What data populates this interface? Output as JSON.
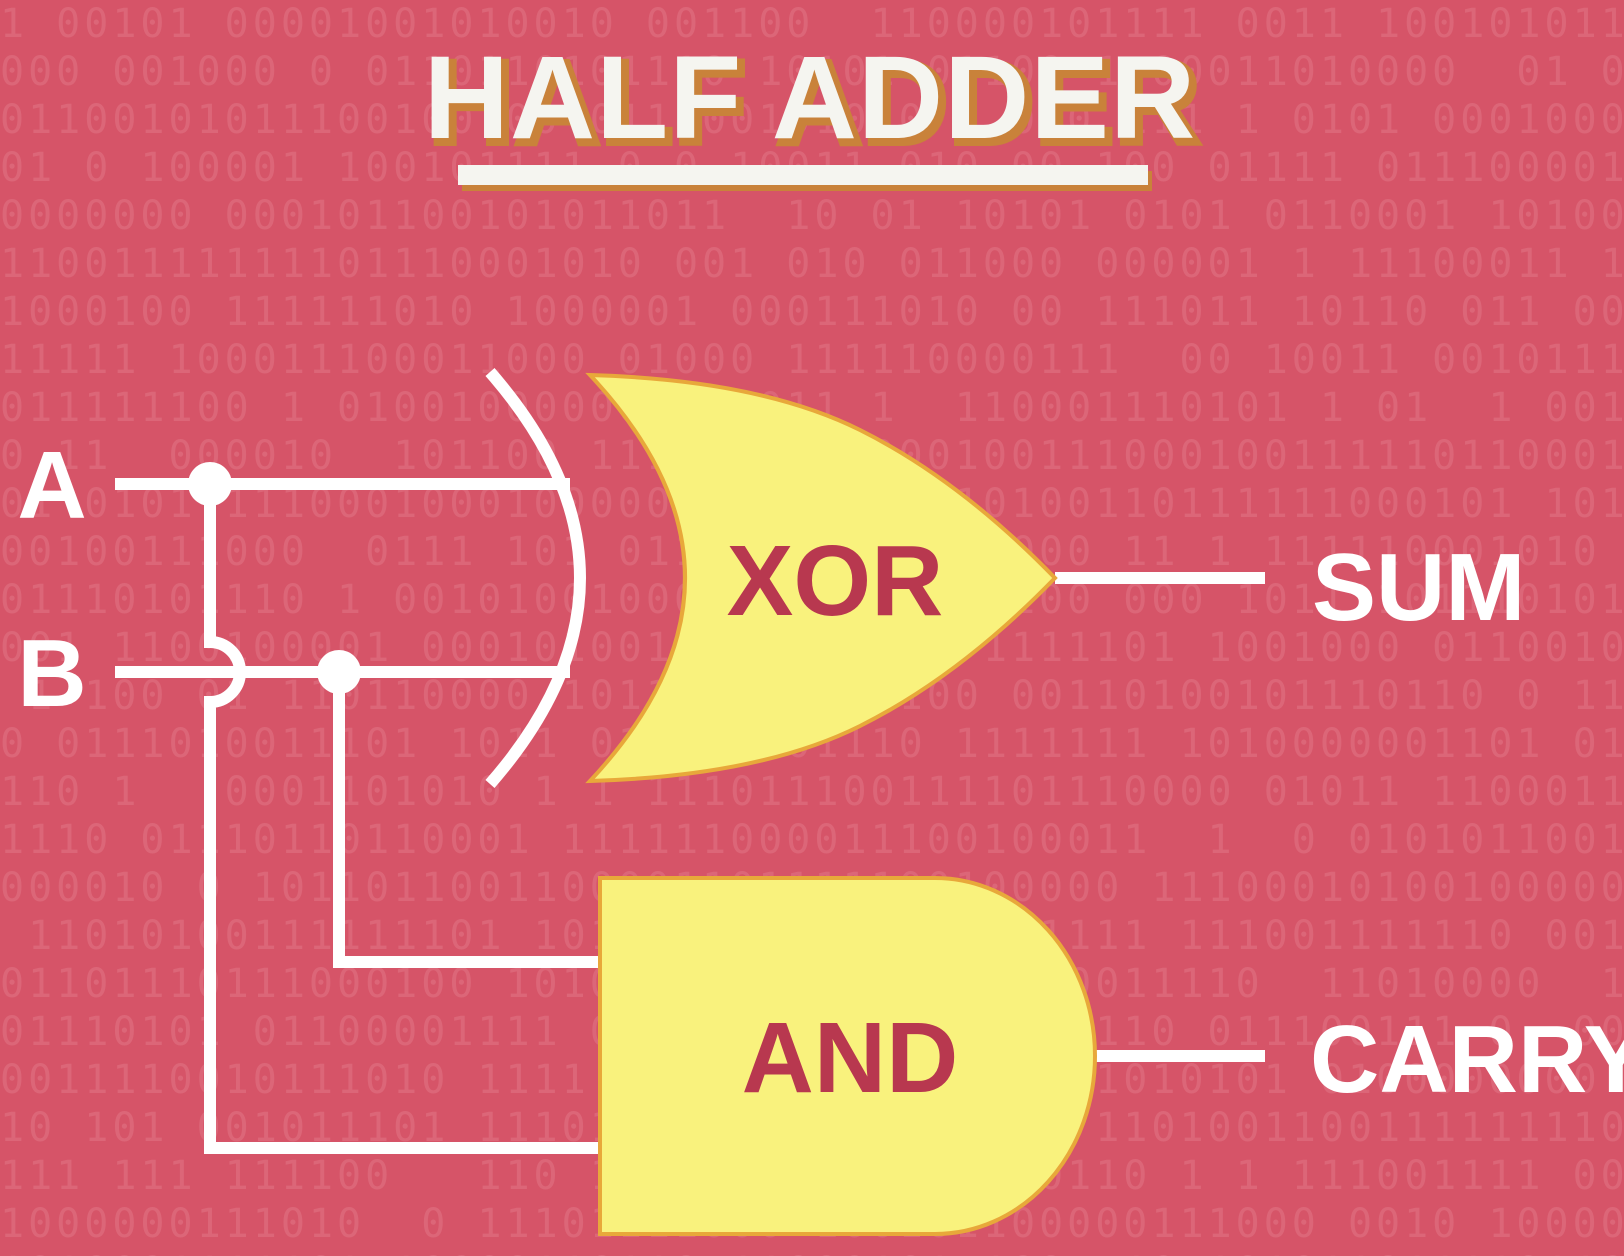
{
  "title": "HALF ADDER",
  "inputs": {
    "a_label": "A",
    "b_label": "B"
  },
  "gates": {
    "xor_label": "XOR",
    "and_label": "AND"
  },
  "outputs": {
    "sum_label": "SUM",
    "carry_label": "CARRY"
  },
  "colors": {
    "background": "#d65468",
    "gate_fill": "#f9f27d",
    "gate_outline": "#e8a83a",
    "gate_text": "#b8384f",
    "wire": "#ffffff",
    "title_text": "#f5f5f0",
    "title_shadow": "#c9823a"
  }
}
